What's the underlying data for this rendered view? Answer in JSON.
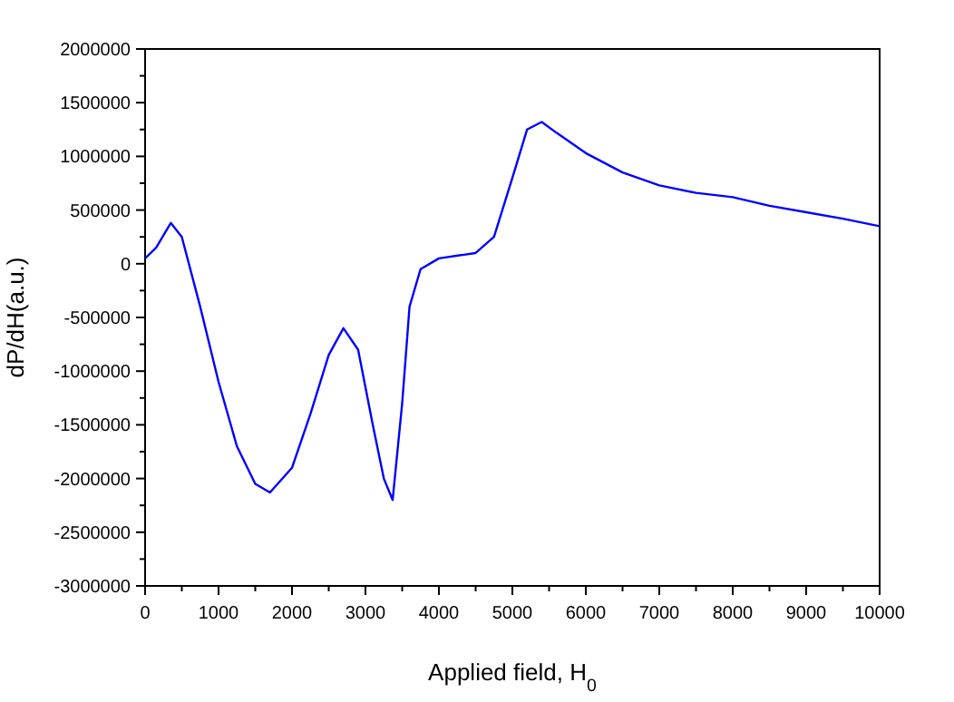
{
  "chart_data": {
    "type": "line",
    "xlabel": "Applied field, H$_{0}$",
    "ylabel": "dP/dH(a.u.)",
    "xlim": [
      0,
      10000
    ],
    "ylim": [
      -3000000,
      2000000
    ],
    "grid": false,
    "marker": "none",
    "line_style": "solid",
    "xticks": [
      0,
      {
        "value": 500,
        "label": null
      },
      1000,
      {
        "value": 1500,
        "label": null
      },
      2000,
      {
        "value": 2500,
        "label": null
      },
      3000,
      {
        "value": 3500,
        "label": null
      },
      4000,
      {
        "value": 4500,
        "label": null
      },
      5000,
      {
        "value": 5500,
        "label": null
      },
      6000,
      {
        "value": 6500,
        "label": null
      },
      7000,
      {
        "value": 7500,
        "label": null
      },
      8000,
      {
        "value": 8500,
        "label": null
      },
      9000,
      {
        "value": 9500,
        "label": null
      },
      10000
    ],
    "yticks": [
      -3000000,
      {
        "value": -2750000,
        "label": null
      },
      -2500000,
      {
        "value": -2250000,
        "label": null
      },
      -2000000,
      {
        "value": -1750000,
        "label": null
      },
      -1500000,
      {
        "value": -1250000,
        "label": null
      },
      -1000000,
      {
        "value": -750000,
        "label": null
      },
      -500000,
      {
        "value": -250000,
        "label": null
      },
      0,
      {
        "value": 250000,
        "label": null
      },
      500000,
      {
        "value": 750000,
        "label": null
      },
      1000000,
      {
        "value": 1250000,
        "label": null
      },
      1500000,
      {
        "value": 1750000,
        "label": null
      },
      2000000
    ],
    "x": [
      0,
      150,
      350,
      500,
      750,
      1000,
      1250,
      1500,
      1700,
      2000,
      2250,
      2500,
      2700,
      2900,
      3100,
      3250,
      3370,
      3500,
      3600,
      3750,
      4000,
      4500,
      4750,
      5000,
      5200,
      5400,
      5600,
      6000,
      6500,
      7000,
      7500,
      8000,
      8500,
      9000,
      9500,
      10000
    ],
    "series": [
      {
        "color": "#0000ff",
        "values": [
          50000,
          150000,
          380000,
          250000,
          -400000,
          -1100000,
          -1700000,
          -2050000,
          -2130000,
          -1900000,
          -1400000,
          -850000,
          -600000,
          -800000,
          -1500000,
          -2000000,
          -2200000,
          -1300000,
          -400000,
          -50000,
          50000,
          100000,
          250000,
          800000,
          1250000,
          1320000,
          1220000,
          1030000,
          850000,
          730000,
          660000,
          620000,
          540000,
          480000,
          420000,
          350000
        ]
      }
    ]
  }
}
